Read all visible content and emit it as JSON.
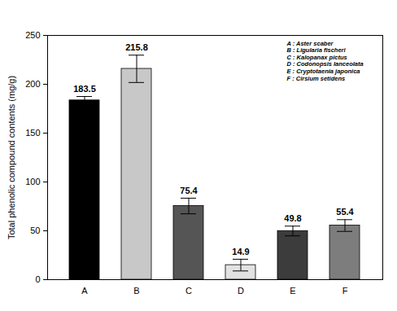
{
  "chart_data": {
    "type": "bar",
    "y_label": "Total phenolic compound contents (mg/g)",
    "categories": [
      "A",
      "B",
      "C",
      "D",
      "E",
      "F"
    ],
    "values": [
      183.5,
      215.8,
      75.4,
      14.9,
      49.8,
      55.4
    ],
    "errors": [
      4,
      14,
      8,
      6,
      5,
      6
    ],
    "colors": [
      "#000000",
      "#c8c8c8",
      "#555555",
      "#e2e2e2",
      "#3c3c3c",
      "#7d7d7d"
    ],
    "ylim": [
      0,
      250
    ],
    "yticks": [
      0,
      50,
      100,
      150,
      200,
      250
    ],
    "grid": false,
    "data_labels": true,
    "annotations": [
      "A : Aster scaber",
      "B : Ligularia fischeri",
      "C : Kalopanax pictus",
      "D : Codonopsis lanceolata",
      "E : Cryptotaenia japonica",
      "F : Cirsium setidens"
    ]
  }
}
